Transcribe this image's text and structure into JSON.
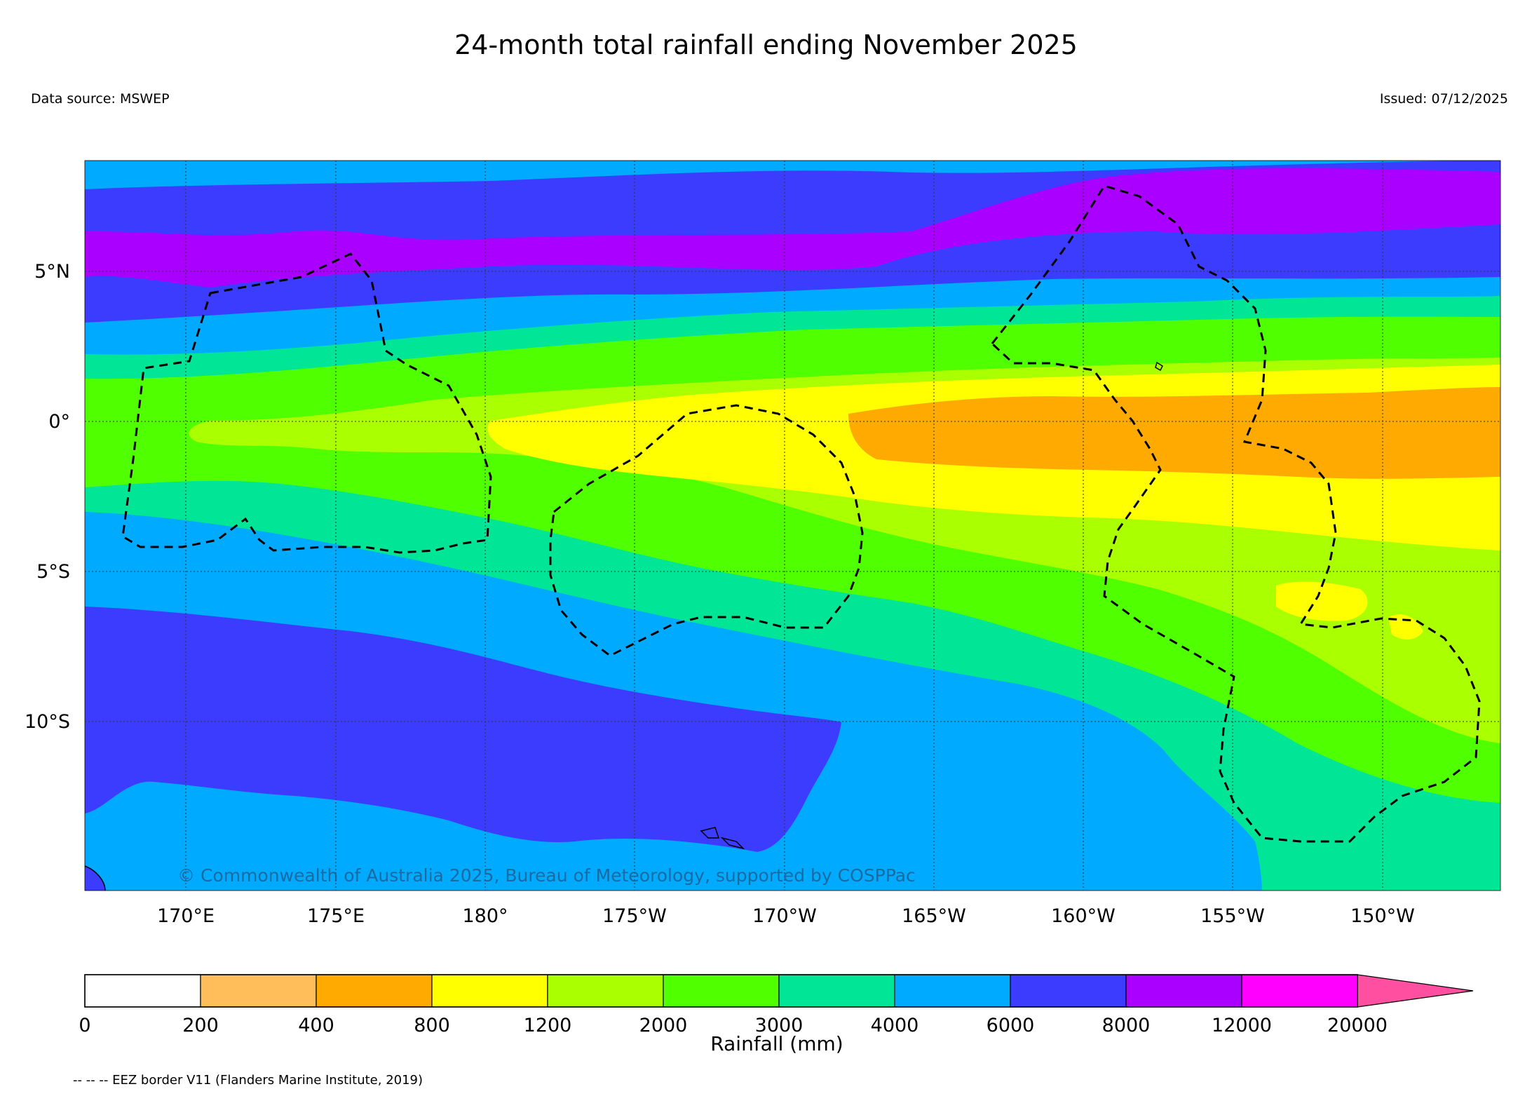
{
  "header": {
    "title": "24-month total rainfall ending November 2025",
    "data_source": "Data source: MSWEP",
    "issued": "Issued: 07/12/2025"
  },
  "map": {
    "lat_ticks": [
      "5°N",
      "0°",
      "5°S",
      "10°S"
    ],
    "lon_ticks": [
      "170°E",
      "175°E",
      "180°",
      "175°W",
      "170°W",
      "165°W",
      "160°W",
      "155°W",
      "150°W"
    ],
    "copyright": "© Commonwealth of Australia 2025, Bureau of Meteorology, supported by COSPPac",
    "gridlines": true,
    "eez_borders": "dashed"
  },
  "colorbar": {
    "label": "Rainfall (mm)",
    "ticks": [
      "0",
      "200",
      "400",
      "800",
      "1200",
      "2000",
      "3000",
      "4000",
      "6000",
      "8000",
      "12000",
      "20000"
    ],
    "colors": [
      "#ffffff",
      "#ffbe5a",
      "#ffaa00",
      "#ffff00",
      "#aaff00",
      "#50ff00",
      "#00e696",
      "#00aaff",
      "#3c3cff",
      "#aa00ff",
      "#ff00ff",
      "#ff4fa0"
    ],
    "extend": "max"
  },
  "footnote": "-- -- -- EEZ border V11 (Flanders Marine Institute, 2019)"
}
